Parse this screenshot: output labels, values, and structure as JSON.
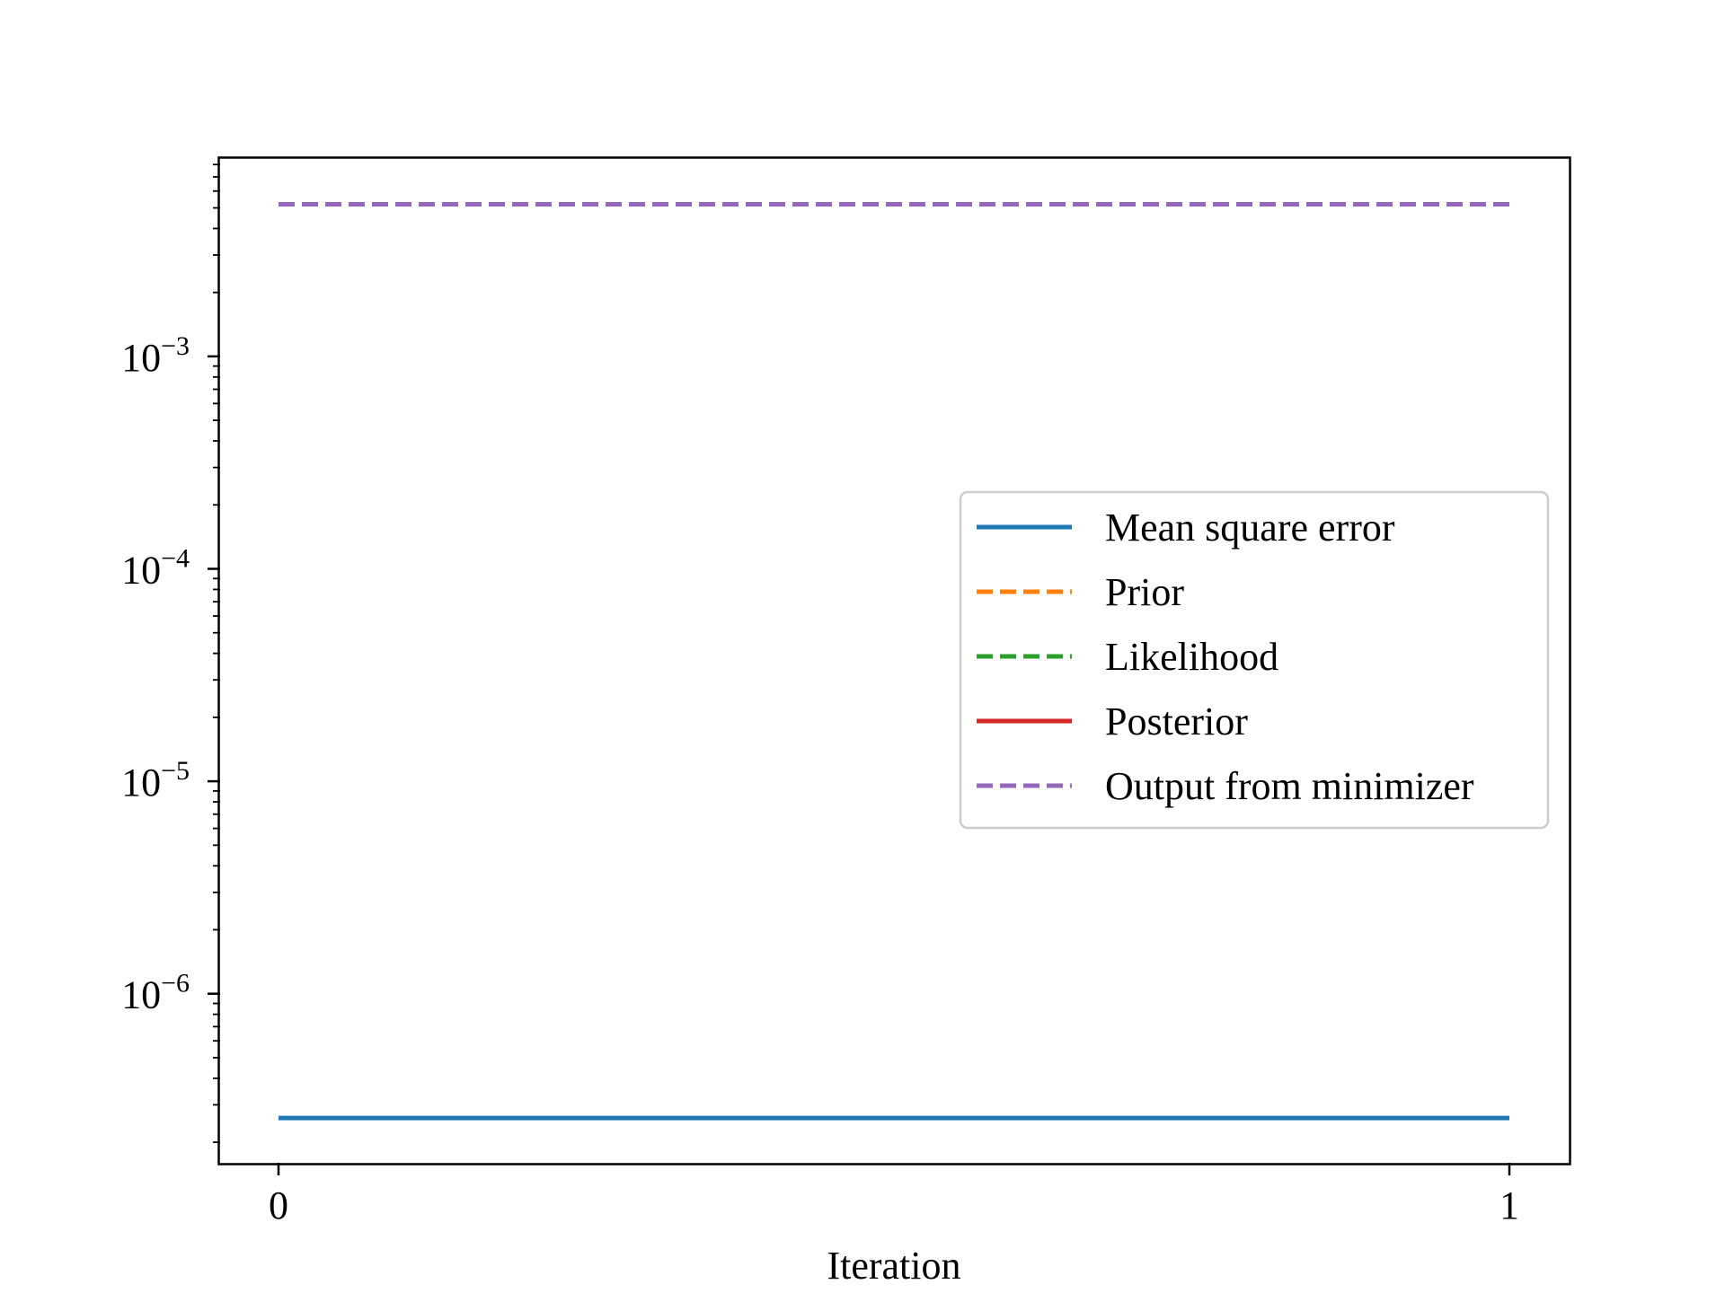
{
  "chart_data": {
    "type": "line",
    "title": "",
    "xlabel": "Iteration",
    "ylabel": "",
    "yscale": "log",
    "x": [
      0,
      1
    ],
    "xticks": [
      "0",
      "1"
    ],
    "yticks": [
      {
        "base": "10",
        "exp": "−3",
        "value": 0.001
      },
      {
        "base": "10",
        "exp": "−4",
        "value": 0.0001
      },
      {
        "base": "10",
        "exp": "−5",
        "value": 1e-05
      },
      {
        "base": "10",
        "exp": "−6",
        "value": 1e-06
      }
    ],
    "ylim": [
      1.6e-07,
      0.0085
    ],
    "grid": false,
    "legend_position": "center-right",
    "series": [
      {
        "name": "Mean square error",
        "values": [
          2.6e-07,
          2.6e-07
        ],
        "color": "#1f77b4",
        "dash": "solid"
      },
      {
        "name": "Prior",
        "values": [
          null,
          null
        ],
        "color": "#ff7f0e",
        "dash": "dashed"
      },
      {
        "name": "Likelihood",
        "values": [
          null,
          null
        ],
        "color": "#2ca02c",
        "dash": "dashed"
      },
      {
        "name": "Posterior",
        "values": [
          null,
          null
        ],
        "color": "#d62728",
        "dash": "solid"
      },
      {
        "name": "Output from minimizer",
        "values": [
          0.0052,
          0.0052
        ],
        "color": "#9467bd",
        "dash": "dashed"
      }
    ]
  }
}
